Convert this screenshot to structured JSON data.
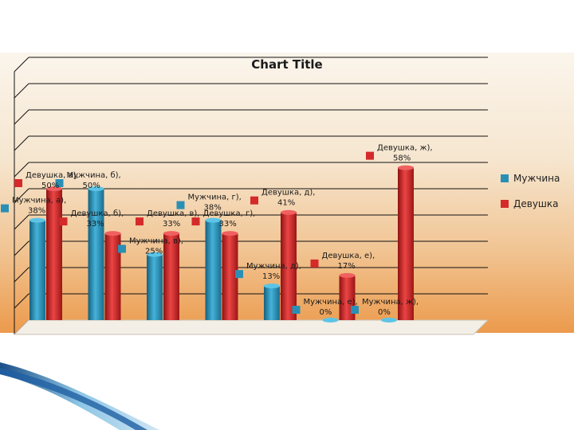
{
  "chart_data": {
    "type": "bar",
    "title": "Chart Title",
    "categories": [
      "а)",
      "б)",
      "в)",
      "г)",
      "д)",
      "е)",
      "ж)"
    ],
    "series": [
      {
        "name": "Мужчина",
        "color": "#2a8fb5",
        "values": [
          38,
          50,
          25,
          38,
          13,
          0,
          0
        ]
      },
      {
        "name": "Девушка",
        "color": "#d42a2a",
        "values": [
          50,
          33,
          33,
          33,
          41,
          17,
          58
        ]
      }
    ],
    "data_labels": [
      [
        "Мужчина, а),\n38%",
        "Мужчина, б),\n50%",
        "Мужчина, в),\n25%",
        "Мужчина, г),\n38%",
        "Мужчина, д),\n13%",
        "Мужчина, е),\n0%",
        "Мужчина, ж),\n0%"
      ],
      [
        "Девушка, а),\n50%",
        "Девушка, б),\n33%",
        "Девушка, в),\n33%",
        "Девушка, г),\n33%",
        "Девушка, д),\n41%",
        "Девушка, е),\n17%",
        "Девушка, ж),\n58%"
      ]
    ],
    "ylim": [
      0,
      100
    ],
    "grid": true,
    "legend_position": "right"
  }
}
